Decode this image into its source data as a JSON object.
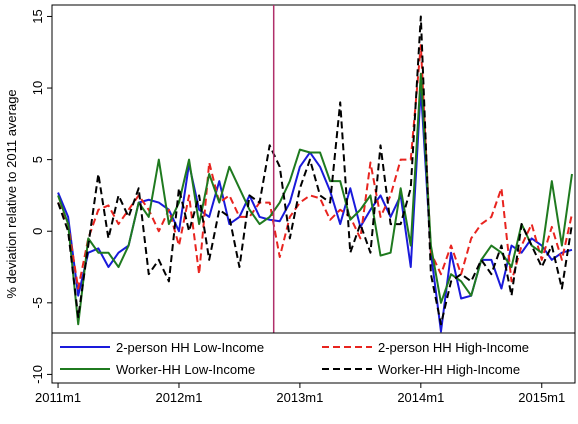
{
  "chart_data": {
    "type": "line",
    "y_label": "% deviation relative to 2011 average",
    "x": [
      0,
      1,
      2,
      3,
      4,
      5,
      6,
      7,
      8,
      9,
      10,
      11,
      12,
      13,
      14,
      15,
      16,
      17,
      18,
      19,
      20,
      21,
      22,
      23,
      24,
      25,
      26,
      27,
      28,
      29,
      30,
      31,
      32,
      33,
      34,
      35,
      36,
      37,
      38,
      39,
      40,
      41,
      42,
      43,
      44,
      45,
      46,
      47,
      48,
      49,
      50,
      51
    ],
    "xlim": [
      -0.6,
      51.3
    ],
    "xticks": [
      {
        "value": 0,
        "label": "2011m1"
      },
      {
        "value": 12,
        "label": "2012m1"
      },
      {
        "value": 24,
        "label": "2013m1"
      },
      {
        "value": 36,
        "label": "2014m1"
      },
      {
        "value": 48,
        "label": "2015m1"
      }
    ],
    "ylim": [
      -10.6,
      15.8
    ],
    "yticks": [
      -10,
      -5,
      0,
      5,
      10,
      15
    ],
    "vline": {
      "x": 21.4,
      "color": "#b0306a"
    },
    "legend": "bottom",
    "series": [
      {
        "name": "2-person HH Low-Income",
        "color": "#1a1adb",
        "dash": false,
        "values": [
          2.7,
          1.0,
          -4.5,
          -1.5,
          -1.2,
          -2.5,
          -1.5,
          -1.0,
          2.0,
          2.2,
          2.0,
          1.5,
          0,
          4.7,
          1.5,
          1.0,
          3.5,
          0.5,
          1.0,
          2.5,
          1.0,
          0.8,
          0.7,
          2.0,
          4.5,
          5.5,
          4.5,
          2.8,
          0.5,
          3.0,
          0.3,
          1.5,
          2.5,
          1.0,
          2.5,
          -2.5,
          10.0,
          -1.5,
          -7.0,
          -1.5,
          -4.7,
          -4.5,
          -2.0,
          -2.0,
          -4.0,
          -1.0,
          -1.5,
          -0.5,
          -1.0,
          -2.0,
          -1.5,
          -1.3
        ]
      },
      {
        "name": "2-person HH High-Income",
        "color": "#e8241f",
        "dash": true,
        "values": [
          2.0,
          0.5,
          -4.0,
          -0.5,
          1.5,
          1.8,
          0.5,
          1.5,
          2.5,
          1.5,
          0,
          1.5,
          -1.0,
          2.5,
          -3.0,
          4.8,
          2.0,
          2.5,
          1.0,
          1.0,
          2.0,
          2.0,
          -1.8,
          1.0,
          2.0,
          2.5,
          2.3,
          0.8,
          1.5,
          1.0,
          -0.5,
          4.8,
          1.0,
          2.5,
          5.0,
          5.0,
          13.0,
          -1.5,
          -3.0,
          -1.0,
          -3.0,
          -0.5,
          0.5,
          1.0,
          3.0,
          -3.5,
          -1.0,
          0.5,
          -2.0,
          0.3,
          -2.0,
          1.2
        ]
      },
      {
        "name": "Worker-HH Low-Income",
        "color": "#1f7a1f",
        "dash": false,
        "values": [
          2.5,
          0.5,
          -6.5,
          -0.5,
          -1.5,
          -1.5,
          -2.5,
          -1.0,
          2.0,
          1.0,
          5.0,
          0.5,
          2.0,
          5.0,
          0.5,
          4.0,
          2.0,
          4.5,
          3.0,
          1.5,
          0.5,
          1.0,
          2.0,
          3.5,
          5.7,
          5.5,
          5.5,
          3.5,
          3.5,
          0.8,
          1.5,
          2.5,
          -1.7,
          -1.5,
          3.0,
          -1.0,
          11.0,
          -1.0,
          -5.0,
          -3.0,
          -3.5,
          -4.5,
          -2.0,
          -1.0,
          -1.5,
          -2.5,
          0.5,
          -1.0,
          -1.5,
          3.5,
          -1.0,
          4.0
        ]
      },
      {
        "name": "Worker-HH High-Income",
        "color": "#000000",
        "dash": true,
        "values": [
          2.0,
          0,
          -6.0,
          -1.0,
          4.0,
          -0.5,
          2.5,
          1.0,
          3.0,
          -3.0,
          -2.0,
          -3.5,
          3.0,
          0,
          2.5,
          -2.0,
          1.5,
          1.0,
          -2.5,
          2.5,
          2.0,
          6.0,
          4.5,
          -0.5,
          3.0,
          5.0,
          2.5,
          2.0,
          9.0,
          -1.5,
          0.5,
          -1.5,
          6.0,
          0.5,
          0.5,
          3.0,
          15.0,
          -3.0,
          -6.5,
          -3.5,
          -3.0,
          -3.5,
          -2.0,
          -3.0,
          -1.0,
          -4.5,
          0.5,
          -1.0,
          -2.5,
          -1.0,
          -4.0,
          0.5
        ]
      }
    ]
  }
}
